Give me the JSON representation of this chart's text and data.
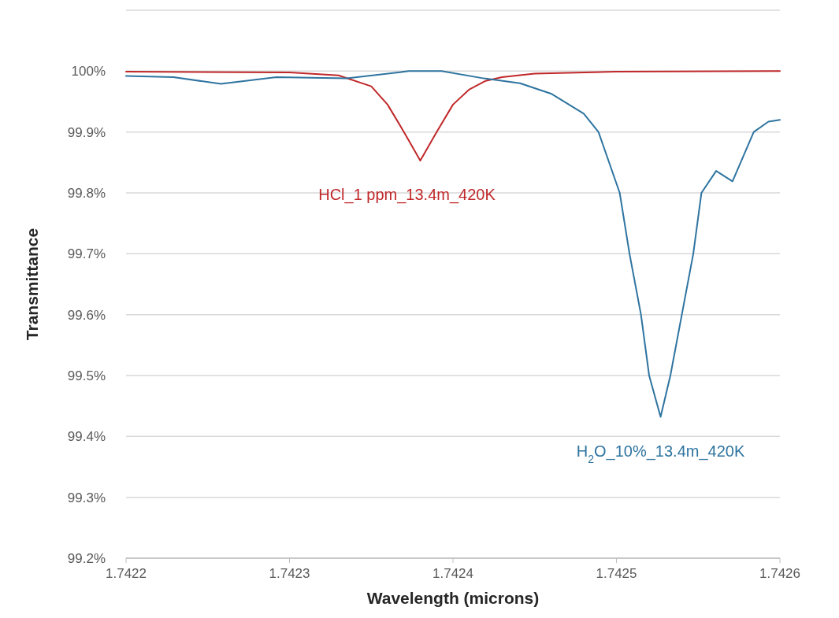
{
  "chart_data": {
    "type": "line",
    "xlabel": "Wavelength (microns)",
    "ylabel": "Transmittance",
    "xlim": [
      1.7422,
      1.7426
    ],
    "xticks": [
      1.7422,
      1.7423,
      1.7424,
      1.7425,
      1.7426
    ],
    "ylim": [
      99.2,
      100.1
    ],
    "yticks": [
      {
        "value": 99.2,
        "label": "99.2%"
      },
      {
        "value": 99.3,
        "label": "99.3%"
      },
      {
        "value": 99.4,
        "label": "99.4%"
      },
      {
        "value": 99.5,
        "label": "99.5%"
      },
      {
        "value": 99.6,
        "label": "99.6%"
      },
      {
        "value": 99.7,
        "label": "99.7%"
      },
      {
        "value": 99.8,
        "label": "99.8%"
      },
      {
        "value": 99.9,
        "label": "99.9%"
      },
      {
        "value": 100,
        "label": "100%"
      },
      {
        "value": 100.1,
        "label": null
      }
    ],
    "grid": "y",
    "legend": false,
    "marker": "none",
    "line_style": "solid",
    "series": [
      {
        "name": "HCl_1 ppm_13.4m_420K",
        "color": "#c0282a",
        "x": [
          1.7422,
          1.7423,
          1.74233,
          1.74235,
          1.74236,
          1.74237,
          1.74238,
          1.74239,
          1.7424,
          1.74241,
          1.74242,
          1.74243,
          1.74245,
          1.7425,
          1.7426
        ],
        "values": [
          99.999,
          99.998,
          99.993,
          99.975,
          99.945,
          99.9,
          99.853,
          99.9,
          99.945,
          99.97,
          99.984,
          99.99,
          99.996,
          99.999,
          100
        ]
      },
      {
        "name": "H$_{2}$O_10%_13.4m_420K",
        "color": "#2e74a0",
        "x": [
          1.7422,
          1.742229,
          1.742258,
          1.742292,
          1.742335,
          1.742373,
          1.742393,
          1.742419,
          1.742441,
          1.74246,
          1.74248,
          1.742489,
          1.742502,
          1.742508,
          1.742515,
          1.74252,
          1.742527,
          1.742533,
          1.74254,
          1.742547,
          1.742552,
          1.742561,
          1.742571,
          1.742584,
          1.742593,
          1.7426
        ],
        "values": [
          99.992,
          99.99,
          99.979,
          99.99,
          99.988,
          100,
          100,
          99.988,
          99.98,
          99.963,
          99.93,
          99.9,
          99.8,
          99.7,
          99.6,
          99.5,
          99.432,
          99.5,
          99.6,
          99.7,
          99.8,
          99.836,
          99.819,
          99.9,
          99.917,
          99.92
        ]
      }
    ]
  }
}
